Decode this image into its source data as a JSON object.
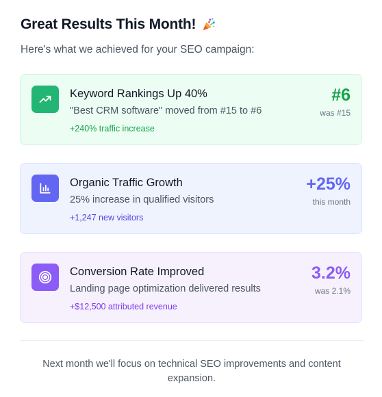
{
  "header": {
    "title": "Great Results This Month!",
    "subtitle": "Here's what we achieved for your SEO campaign:"
  },
  "cards": [
    {
      "icon": "trending-up-icon",
      "title": "Keyword Rankings Up 40%",
      "description": "\"Best CRM software\" moved from #15 to #6",
      "note": "+240% traffic increase",
      "metric": "#6",
      "metric_sub": "was #15",
      "accent": "#16a34a"
    },
    {
      "icon": "bar-chart-icon",
      "title": "Organic Traffic Growth",
      "description": "25% increase in qualified visitors",
      "note": "+1,247 new visitors",
      "metric": "+25%",
      "metric_sub": "this month",
      "accent": "#6366f1"
    },
    {
      "icon": "target-icon",
      "title": "Conversion Rate Improved",
      "description": "Landing page optimization delivered results",
      "note": "+$12,500 attributed revenue",
      "metric": "3.2%",
      "metric_sub": "was 2.1%",
      "accent": "#8b5cf6"
    }
  ],
  "footer": {
    "text": "Next month we'll focus on technical SEO improvements and content expansion."
  }
}
